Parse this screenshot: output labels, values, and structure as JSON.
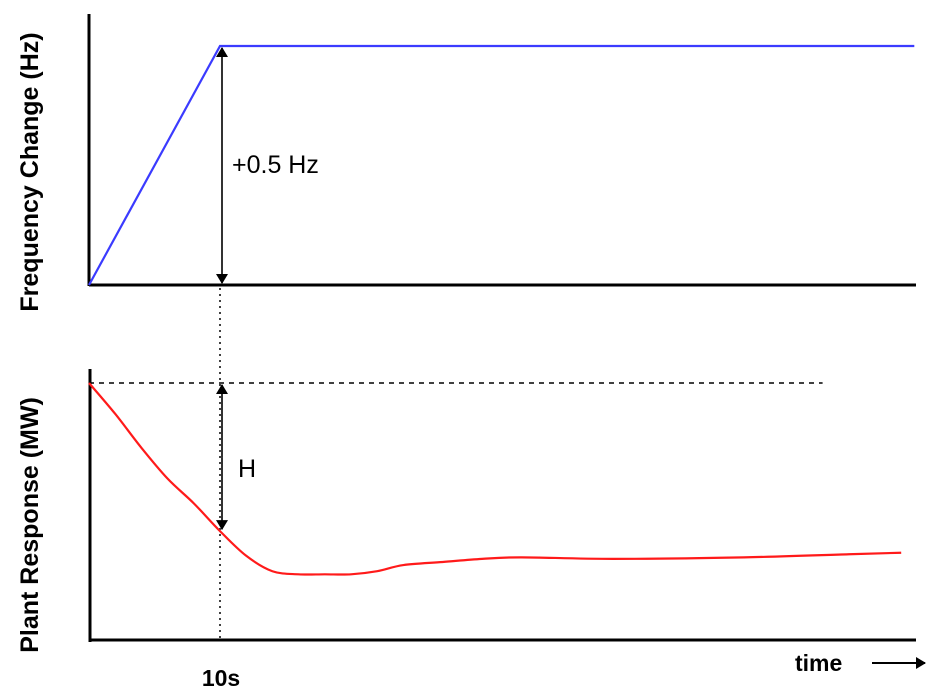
{
  "chart_data": [
    {
      "type": "line",
      "ylabel": "Frequency Change (Hz)",
      "series": [
        {
          "color": "#3b3bff",
          "points": [
            [
              0,
              0
            ],
            [
              10,
              0.5
            ],
            [
              63,
              0.5
            ]
          ]
        }
      ],
      "xlim": [
        0,
        66
      ],
      "ylim": [
        0,
        0.5
      ],
      "annotations": [
        {
          "text": "+0.5 Hz",
          "kind": "double-arrow",
          "x": 10,
          "from": 0,
          "to": 0.5
        }
      ],
      "grid": false
    },
    {
      "type": "line",
      "ylabel": "Plant Response (MW)",
      "series": [
        {
          "color": "#ff1a1a",
          "points": [
            [
              0,
              1.0
            ],
            [
              2,
              0.9
            ],
            [
              4,
              0.79
            ],
            [
              6,
              0.69
            ],
            [
              8,
              0.61
            ],
            [
              10,
              0.52
            ],
            [
              12,
              0.44
            ],
            [
              14,
              0.39
            ],
            [
              16,
              0.38
            ],
            [
              18,
              0.38
            ],
            [
              20,
              0.38
            ],
            [
              22,
              0.39
            ],
            [
              24,
              0.41
            ],
            [
              27,
              0.42
            ],
            [
              30,
              0.43
            ],
            [
              33,
              0.435
            ],
            [
              40,
              0.43
            ],
            [
              50,
              0.435
            ],
            [
              58,
              0.445
            ],
            [
              62,
              0.45
            ]
          ]
        }
      ],
      "reference_line": {
        "y": 1.0,
        "style": "dashed",
        "x_end": 56
      },
      "xlim": [
        0,
        66
      ],
      "ylim": [
        0.3,
        1.0
      ],
      "annotations": [
        {
          "text": "H",
          "kind": "double-arrow",
          "x": 10,
          "from": 1.0,
          "to": 0.52
        }
      ],
      "grid": false
    }
  ],
  "shared_x": {
    "xlabel": "time",
    "tick": {
      "x": 10,
      "label": "10s"
    }
  }
}
